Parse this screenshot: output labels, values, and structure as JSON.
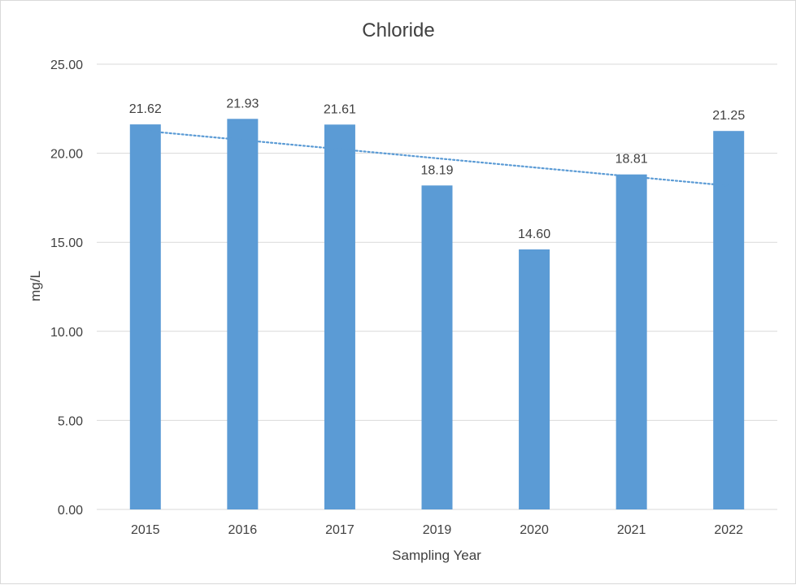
{
  "chart_data": {
    "type": "bar",
    "title": "Chloride",
    "xlabel": "Sampling Year",
    "ylabel": "mg/L",
    "categories": [
      "2015",
      "2016",
      "2017",
      "2019",
      "2020",
      "2021",
      "2022"
    ],
    "values": [
      21.62,
      21.93,
      21.61,
      18.19,
      14.6,
      18.81,
      21.25
    ],
    "data_labels": [
      "21.62",
      "21.93",
      "21.61",
      "18.19",
      "14.60",
      "18.81",
      "21.25"
    ],
    "ylim": [
      0,
      25
    ],
    "yticks": [
      "0.00",
      "5.00",
      "10.00",
      "15.00",
      "20.00",
      "25.00"
    ],
    "grid": true,
    "legend": "none",
    "trendline": {
      "type": "linear",
      "style": "dotted",
      "color": "#5b9bd5"
    },
    "colors": {
      "bar": "#5b9bd5",
      "grid": "#d9d9d9",
      "text": "#404040"
    }
  }
}
